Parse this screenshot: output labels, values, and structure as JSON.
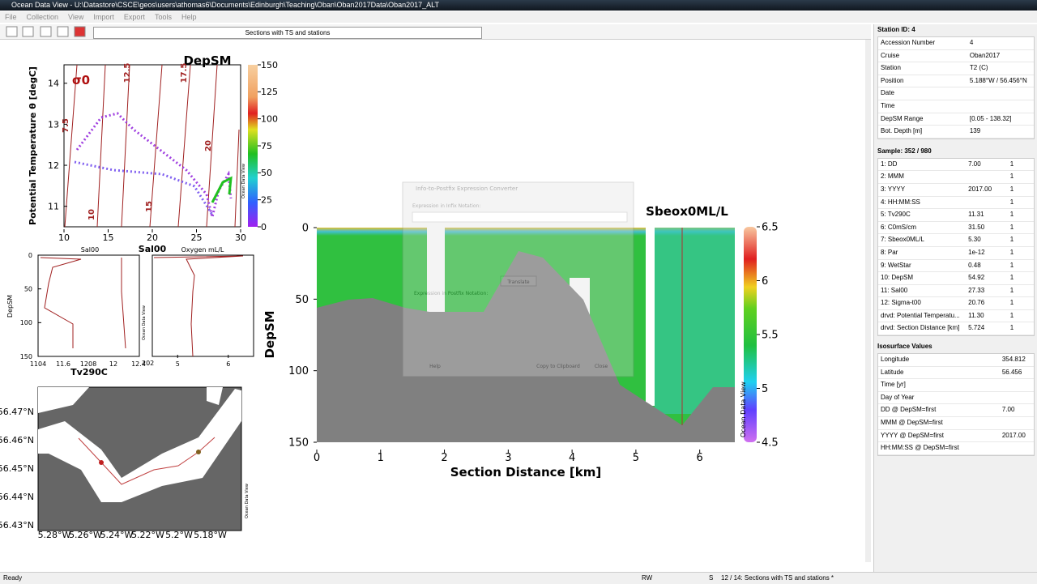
{
  "window": {
    "title": "Ocean Data View - U:\\Datastore\\CSCE\\geos\\users\\athomas6\\Documents\\Edinburgh\\Teaching\\Oban\\Oban2017Data\\Oban2017_ALT",
    "menu": [
      "File",
      "Collection",
      "View",
      "Import",
      "Export",
      "Tools",
      "Help"
    ]
  },
  "toolbar": {
    "tab": "Sections with TS and stations"
  },
  "ts_plot": {
    "title": "DepSM",
    "y_label": "Potential Temperature θ [degC]",
    "sigma_label": "σ0",
    "xlim": [
      10,
      30
    ],
    "xticks": [
      10,
      15,
      20,
      25,
      30
    ],
    "ylim": [
      10.5,
      14.45
    ],
    "yticks": [
      11,
      12,
      13,
      14
    ],
    "isopycnals": [
      "7.5",
      "10",
      "12.5",
      "15",
      "17.5",
      "20"
    ],
    "colorbar": {
      "lim": [
        0,
        150
      ],
      "ticks": [
        0,
        25,
        50,
        75,
        100,
        125,
        150
      ]
    },
    "watermark": "Ocean Data View"
  },
  "profiles": {
    "center_label": "Sal00",
    "y_label": "DepSM",
    "ylim": [
      0,
      150
    ],
    "yticks": [
      0,
      50,
      100,
      150
    ],
    "sal": {
      "title": "Sal00",
      "x_label": "Tv290C",
      "xtick_labels": [
        "1104",
        "11.6",
        "1208",
        "12",
        "12.4"
      ]
    },
    "oxygen": {
      "title": "Oxygen mL/L",
      "xlim": [
        4.5,
        6.5
      ],
      "xticks": [
        5,
        6
      ],
      "left_label": "202"
    },
    "watermark": "Ocean Data View"
  },
  "map": {
    "lat_labels": [
      "56.47°N",
      "56.46°N",
      "56.45°N",
      "56.44°N",
      "56.43°N"
    ],
    "lon_labels": [
      "5.28°W",
      "5.26°W",
      "5.24°W",
      "5.22°W",
      "5.2°W",
      "5.18°W"
    ],
    "watermark": "Ocean Data View"
  },
  "section": {
    "title": "Sbeox0ML/L",
    "x_label": "Section Distance [km]",
    "y_label": "DepSM",
    "xlim": [
      0,
      6.55
    ],
    "xticks": [
      0,
      1,
      2,
      3,
      4,
      5,
      6
    ],
    "ylim": [
      0,
      150
    ],
    "yticks": [
      0,
      50,
      100,
      150
    ],
    "colorbar": {
      "lim": [
        4.5,
        6.5
      ],
      "ticks": [
        4.5,
        5,
        5.5,
        6,
        6.5
      ]
    },
    "watermark": "Ocean Data View"
  },
  "dialog": {
    "title": "Info-to-Postfix Expression Converter",
    "infix_label": "Expression in Infix Notation:",
    "translate": "Translate",
    "postfix_label": "Expression in Postfix Notation:",
    "buttons": [
      "Help",
      "Copy to Clipboard",
      "Close"
    ]
  },
  "station": {
    "title": "Station ID: 4",
    "rows": [
      [
        "Accession Number",
        "4"
      ],
      [
        "Cruise",
        "Oban2017"
      ],
      [
        "Station",
        "T2 (C)"
      ],
      [
        "Position",
        "5.188°W / 56.456°N"
      ],
      [
        "Date"
      ],
      [
        "Time"
      ],
      [
        "DepSM Range",
        "[0.05 - 138.32]"
      ],
      [
        "Bot. Depth [m]",
        "139"
      ]
    ]
  },
  "sample": {
    "title": "Sample: 352 / 980",
    "rows": [
      [
        "1: DD",
        "7.00",
        "1"
      ],
      [
        "2: MMM",
        "",
        "1"
      ],
      [
        "3: YYYY",
        "2017.00",
        "1"
      ],
      [
        "4: HH:MM:SS",
        "",
        "1"
      ],
      [
        "5: Tv290C",
        "11.31",
        "1"
      ],
      [
        "6: C0mS/cm",
        "31.50",
        "1"
      ],
      [
        "7: Sbeox0ML/L",
        "5.30",
        "1"
      ],
      [
        "8: Par",
        "1e-12",
        "1"
      ],
      [
        "9: WetStar",
        "0.48",
        "1"
      ],
      [
        "10: DepSM",
        "54.92",
        "1"
      ],
      [
        "11: Sal00",
        "27.33",
        "1"
      ],
      [
        "12: Sigma-t00",
        "20.76",
        "1"
      ],
      [
        "drvd: Potential Temperatu...",
        "11.30",
        "1"
      ],
      [
        "drvd: Section Distance [km]",
        "5.724",
        "1"
      ]
    ]
  },
  "isosurface": {
    "title": "Isosurface Values",
    "rows": [
      [
        "Longitude",
        "354.812"
      ],
      [
        "Latitude",
        "56.456"
      ],
      [
        "Time [yr]"
      ],
      [
        "Day of Year"
      ],
      [
        "DD @ DepSM=first",
        "7.00"
      ],
      [
        "MMM @ DepSM=first"
      ],
      [
        "YYYY @ DepSM=first",
        "2017.00"
      ],
      [
        "HH:MM:SS @ DepSM=first"
      ]
    ]
  },
  "status": {
    "left": "Ready",
    "rw": "RW",
    "s": "S",
    "view": "12 / 14: Sections with TS and stations *"
  }
}
